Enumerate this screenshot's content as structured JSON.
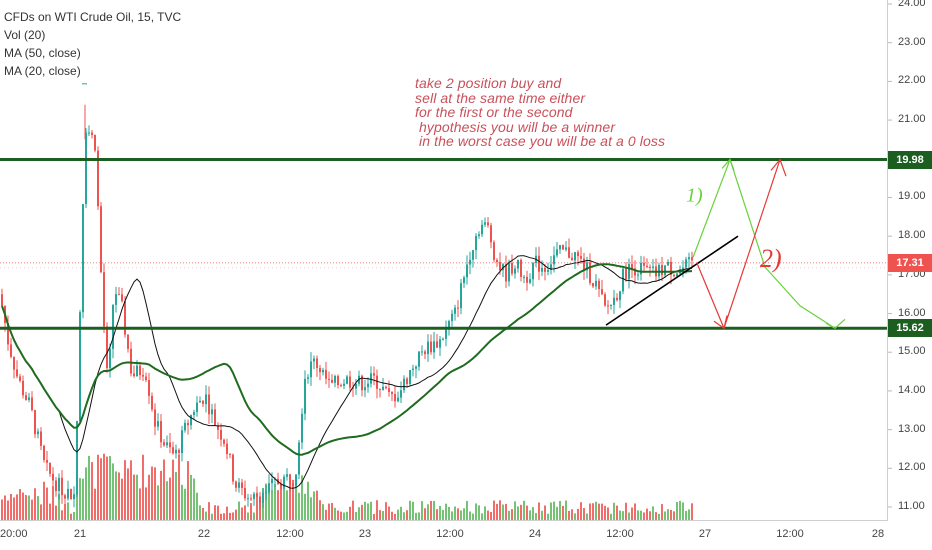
{
  "legend": {
    "title": "CFDs on WTI Crude Oil, 15, TVC",
    "vol": "Vol (20)",
    "ma50": "MA (50, close)",
    "ma20": "MA (20, close)"
  },
  "annotation": {
    "lines": [
      "take 2 position buy and",
      "sell at the same time either",
      "for the first or the second",
      " hypothesis you will be a winner",
      " in the worst case you will be at a 0 loss"
    ],
    "label_1": "1)",
    "label_2": "2)"
  },
  "price_tags": {
    "resistance": "19.98",
    "current": "17.31",
    "support": "15.62"
  },
  "colors": {
    "up": "#26a69a",
    "up_vol": "#5cb85c",
    "down": "#ef5350",
    "level_line": "#1b5e20",
    "ma50": "#1f6b1f",
    "ma20": "#111111",
    "current_tag": "#ef5350",
    "level_tag": "#1b5e20",
    "scenario_green": "#66d23c",
    "scenario_red": "#e53935",
    "annotation_text": "#c9505a"
  },
  "chart_data": {
    "type": "candlestick",
    "title": "CFDs on WTI Crude Oil, 15, TVC",
    "indicators": [
      "Vol (20)",
      "MA (50, close)",
      "MA (20, close)"
    ],
    "y_ticks": [
      "24.00",
      "23.00",
      "22.00",
      "21.00",
      "20.00",
      "19.00",
      "18.00",
      "17.00",
      "16.00",
      "15.00",
      "14.00",
      "13.00",
      "12.00",
      "11.00"
    ],
    "ylim": [
      10.8,
      24.1
    ],
    "x_ticks": [
      "20:00",
      "21",
      "22",
      "12:00",
      "23",
      "12:00",
      "24",
      "12:00",
      "27",
      "12:00",
      "28"
    ],
    "horizontal_levels": [
      19.98,
      15.62
    ],
    "current_price": 17.31,
    "key_points": [
      {
        "label": "open 21",
        "price": 20.9
      },
      {
        "label": "spike high 21",
        "price": 20.95
      },
      {
        "label": "low 22 12:00",
        "price": 11.1
      },
      {
        "label": "high 23 12:00",
        "price": 18.5
      },
      {
        "label": "low 24 12:00",
        "price": 15.8
      },
      {
        "label": "last",
        "price": 17.31
      }
    ],
    "scenario_1_green": [
      17.45,
      19.98,
      15.62
    ],
    "scenario_2_red": [
      17.3,
      15.62,
      19.98
    ]
  }
}
